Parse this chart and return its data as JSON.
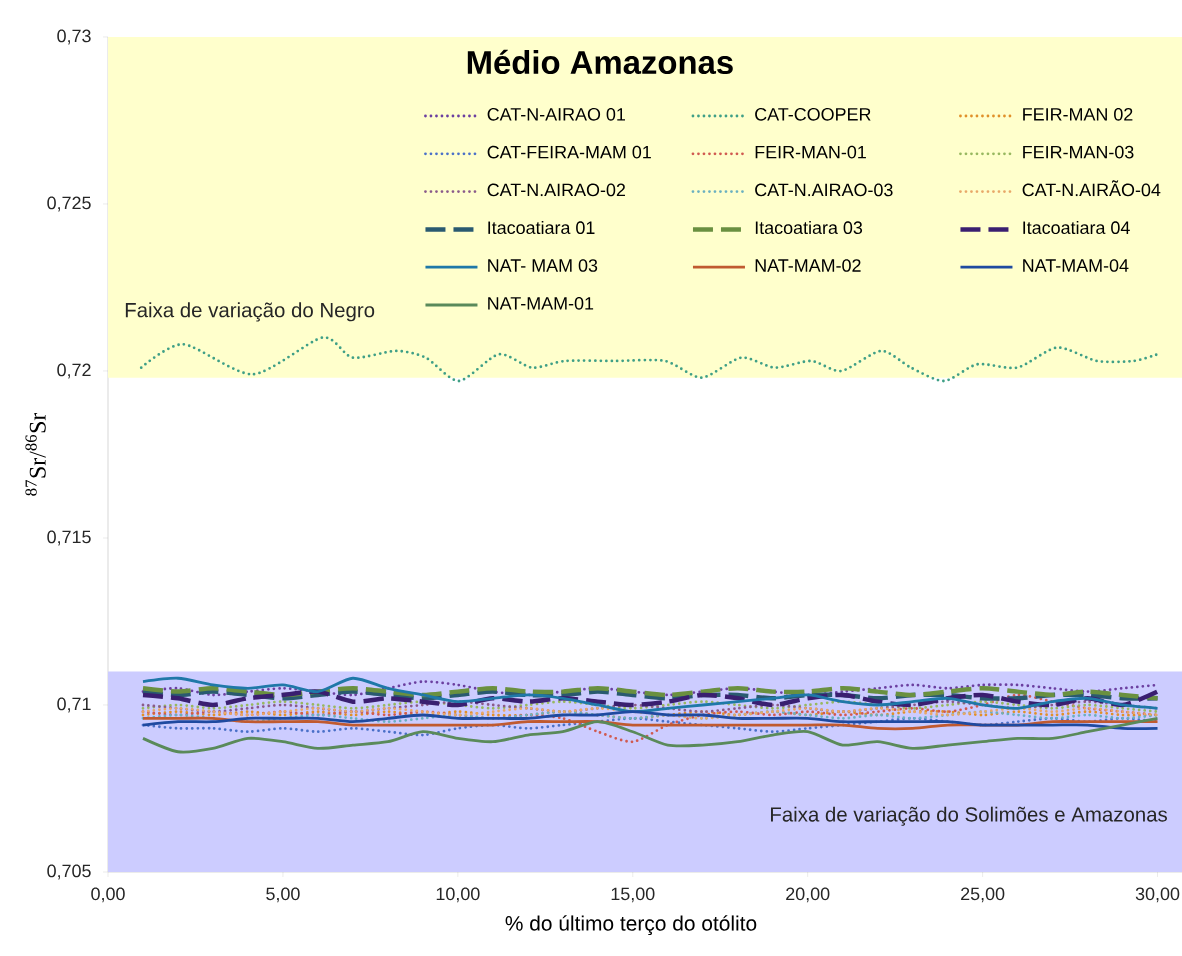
{
  "chart_data": {
    "type": "line",
    "title": "Médio Amazonas",
    "xlabel": "% do último terço do otólito",
    "ylabel": "$^{87}$Sr/$^{86}$Sr",
    "xlim": [
      0,
      30.7
    ],
    "ylim": [
      0.705,
      0.73
    ],
    "xticks": [
      {
        "value": 0,
        "label": "0,00"
      },
      {
        "value": 5,
        "label": "5,00"
      },
      {
        "value": 10,
        "label": "10,00"
      },
      {
        "value": 15,
        "label": "15,00"
      },
      {
        "value": 20,
        "label": "20,00"
      },
      {
        "value": 25,
        "label": "25,00"
      },
      {
        "value": 30,
        "label": "30,00"
      }
    ],
    "yticks": [
      {
        "value": 0.705,
        "label": "0,705"
      },
      {
        "value": 0.71,
        "label": "0,71"
      },
      {
        "value": 0.715,
        "label": "0,715"
      },
      {
        "value": 0.72,
        "label": "0,72"
      },
      {
        "value": 0.725,
        "label": "0,725"
      },
      {
        "value": 0.73,
        "label": "0,73"
      }
    ],
    "legend": "top",
    "bands": [
      {
        "axis": "y",
        "from": 0.7198,
        "to": 0.73,
        "label": "Faixa de variação do Negro",
        "color": "#ffffcc"
      },
      {
        "axis": "y",
        "from": 0.705,
        "to": 0.711,
        "label": "Faixa de variação do Solimões e Amazonas",
        "color": "#ccccff"
      }
    ],
    "x": [
      1,
      2,
      3,
      4,
      5,
      6,
      7,
      8,
      9,
      10,
      11,
      12,
      13,
      14,
      15,
      16,
      17,
      18,
      19,
      20,
      21,
      22,
      23,
      24,
      25,
      26,
      27,
      28,
      29,
      30
    ],
    "series": [
      {
        "name": "CAT-N-AIRAO 01",
        "color": "#6b3fa0",
        "line_style": "dotted",
        "values": [
          0.7104,
          0.7105,
          0.7103,
          0.7104,
          0.7105,
          0.7104,
          0.7103,
          0.7105,
          0.7107,
          0.7106,
          0.7104,
          0.7103,
          0.7104,
          0.7105,
          0.7104,
          0.7103,
          0.7104,
          0.7105,
          0.7104,
          0.7103,
          0.7104,
          0.7105,
          0.7106,
          0.7105,
          0.7106,
          0.7106,
          0.7105,
          0.7104,
          0.7105,
          0.7106
        ]
      },
      {
        "name": "CAT-COOPER",
        "color": "#3f9f86",
        "line_style": "dotted",
        "x": [
          0.95,
          2.15,
          4.14,
          6.13,
          6.99,
          8.23,
          9.08,
          10.03,
          11.17,
          12.12,
          13.07,
          14.5,
          15.92,
          16.97,
          18.1,
          19.06,
          20.1,
          20.96,
          22.1,
          22.95,
          23.9,
          24.85,
          25.99,
          27.13,
          28.27,
          29.32,
          30.0
        ],
        "values": [
          0.7201,
          0.7208,
          0.7199,
          0.721,
          0.7204,
          0.7206,
          0.7204,
          0.7197,
          0.7205,
          0.7201,
          0.7203,
          0.7203,
          0.7203,
          0.7198,
          0.7204,
          0.7201,
          0.7203,
          0.72,
          0.7206,
          0.7201,
          0.7197,
          0.7202,
          0.7201,
          0.7207,
          0.7203,
          0.7203,
          0.7205
        ]
      },
      {
        "name": "FEIR-MAN 02",
        "color": "#e0902a",
        "line_style": "dotted",
        "values": [
          0.7097,
          0.7098,
          0.7097,
          0.7098,
          0.7097,
          0.7098,
          0.7097,
          0.7098,
          0.7097,
          0.7098,
          0.7097,
          0.7097,
          0.7098,
          0.7097,
          0.7096,
          0.7097,
          0.7098,
          0.7097,
          0.7098,
          0.7097,
          0.7098,
          0.7097,
          0.7098,
          0.7098,
          0.7097,
          0.7098,
          0.7097,
          0.7098,
          0.7097,
          0.7097
        ]
      },
      {
        "name": "CAT-FEIRA-MAM 01",
        "color": "#4a70c8",
        "line_style": "dotted",
        "values": [
          0.7094,
          0.7093,
          0.7093,
          0.7092,
          0.7093,
          0.7092,
          0.7093,
          0.7092,
          0.7091,
          0.7093,
          0.7094,
          0.7093,
          0.7094,
          0.7095,
          0.7096,
          0.7095,
          0.7094,
          0.7093,
          0.7092,
          0.7093,
          0.7094,
          0.7095,
          0.7096,
          0.7095,
          0.7094,
          0.7095,
          0.7096,
          0.7095,
          0.7096,
          0.7095
        ]
      },
      {
        "name": "FEIR-MAN-01",
        "color": "#d05a50",
        "line_style": "dotted",
        "values": [
          0.7098,
          0.7097,
          0.7098,
          0.7097,
          0.7098,
          0.7097,
          0.7098,
          0.7097,
          0.7098,
          0.7097,
          0.7096,
          0.7097,
          0.7096,
          0.7092,
          0.7089,
          0.7094,
          0.7097,
          0.7098,
          0.7097,
          0.7098,
          0.7097,
          0.7098,
          0.7099,
          0.7098,
          0.71,
          0.7103,
          0.7101,
          0.7099,
          0.7098,
          0.7097
        ]
      },
      {
        "name": "FEIR-MAN-03",
        "color": "#98b860",
        "line_style": "dotted",
        "values": [
          0.7099,
          0.71,
          0.7099,
          0.71,
          0.7101,
          0.71,
          0.7099,
          0.71,
          0.7101,
          0.71,
          0.7099,
          0.71,
          0.7101,
          0.71,
          0.7099,
          0.71,
          0.7101,
          0.71,
          0.7099,
          0.71,
          0.7101,
          0.71,
          0.7099,
          0.71,
          0.7101,
          0.71,
          0.7099,
          0.71,
          0.7099,
          0.7098
        ]
      },
      {
        "name": "CAT-N.AIRAO-02",
        "color": "#8a5a8a",
        "line_style": "dotted",
        "values": [
          0.71,
          0.7099,
          0.7098,
          0.7099,
          0.71,
          0.7099,
          0.7098,
          0.7099,
          0.71,
          0.7101,
          0.71,
          0.7099,
          0.7098,
          0.7099,
          0.71,
          0.7099,
          0.7098,
          0.7099,
          0.71,
          0.7099,
          0.7098,
          0.7099,
          0.71,
          0.7101,
          0.71,
          0.7099,
          0.71,
          0.7101,
          0.71,
          0.7099
        ]
      },
      {
        "name": "CAT-N.AIRAO-03",
        "color": "#6ab0c0",
        "line_style": "dotted",
        "values": [
          0.7096,
          0.7097,
          0.7096,
          0.7095,
          0.7096,
          0.7097,
          0.7096,
          0.7095,
          0.7096,
          0.7097,
          0.7096,
          0.7097,
          0.7098,
          0.7097,
          0.7096,
          0.7097,
          0.7096,
          0.7097,
          0.7098,
          0.7097,
          0.7096,
          0.7097,
          0.7096,
          0.7097,
          0.7098,
          0.7097,
          0.7096,
          0.7097,
          0.7096,
          0.7097
        ]
      },
      {
        "name": "CAT-N.AIRÃO-04",
        "color": "#e8a868",
        "line_style": "dotted",
        "values": [
          0.7098,
          0.7099,
          0.7098,
          0.7097,
          0.7098,
          0.7099,
          0.7098,
          0.7099,
          0.7098,
          0.7097,
          0.7098,
          0.7099,
          0.7098,
          0.7099,
          0.7098,
          0.7097,
          0.7096,
          0.7097,
          0.7098,
          0.7099,
          0.7098,
          0.7099,
          0.7098,
          0.7097,
          0.7098,
          0.7099,
          0.7098,
          0.7099,
          0.7098,
          0.7097
        ]
      },
      {
        "name": "Itacoatiara 01",
        "color": "#2a5a70",
        "line_style": "dashed",
        "values": [
          0.7104,
          0.7103,
          0.7104,
          0.7103,
          0.7102,
          0.7103,
          0.7104,
          0.7103,
          0.7102,
          0.7103,
          0.7104,
          0.7103,
          0.7103,
          0.7104,
          0.7103,
          0.7102,
          0.7103,
          0.7103,
          0.7102,
          0.7103,
          0.7103,
          0.7102,
          0.7103,
          0.7103,
          0.7102,
          0.7102,
          0.7103,
          0.7103,
          0.7102,
          0.7102
        ]
      },
      {
        "name": "Itacoatiara 03",
        "color": "#6a9040",
        "line_style": "dashed",
        "values": [
          0.7105,
          0.7104,
          0.7105,
          0.7104,
          0.7103,
          0.7104,
          0.7105,
          0.7104,
          0.7103,
          0.7104,
          0.7105,
          0.7104,
          0.7104,
          0.7105,
          0.7104,
          0.7103,
          0.7104,
          0.7105,
          0.7104,
          0.7104,
          0.7105,
          0.7104,
          0.7103,
          0.7104,
          0.7105,
          0.7104,
          0.7103,
          0.7104,
          0.7103,
          0.7102
        ]
      },
      {
        "name": "Itacoatiara 04",
        "color": "#3a1f70",
        "line_style": "dashed",
        "values": [
          0.7103,
          0.7102,
          0.71,
          0.7102,
          0.7103,
          0.7104,
          0.7101,
          0.7102,
          0.7101,
          0.71,
          0.7102,
          0.7101,
          0.7102,
          0.7101,
          0.71,
          0.7101,
          0.7103,
          0.7102,
          0.71,
          0.7102,
          0.7103,
          0.7101,
          0.71,
          0.7102,
          0.7103,
          0.7101,
          0.71,
          0.7102,
          0.71,
          0.7104
        ]
      },
      {
        "name": "NAT- MAM 03",
        "color": "#1f78a8",
        "line_style": "solid",
        "values": [
          0.7107,
          0.7108,
          0.7106,
          0.7105,
          0.7106,
          0.7104,
          0.7108,
          0.7105,
          0.7103,
          0.7101,
          0.7102,
          0.7103,
          0.7102,
          0.71,
          0.7098,
          0.7099,
          0.71,
          0.7101,
          0.7102,
          0.7103,
          0.7101,
          0.71,
          0.7101,
          0.7102,
          0.71,
          0.7099,
          0.7101,
          0.7102,
          0.71,
          0.7099
        ]
      },
      {
        "name": "NAT-MAM-02",
        "color": "#c05a30",
        "line_style": "solid",
        "values": [
          0.7096,
          0.7096,
          0.7096,
          0.7095,
          0.7095,
          0.7095,
          0.7094,
          0.7094,
          0.7094,
          0.7094,
          0.7094,
          0.7095,
          0.7095,
          0.7095,
          0.7094,
          0.7094,
          0.7094,
          0.7094,
          0.7094,
          0.7094,
          0.7094,
          0.7093,
          0.7093,
          0.7094,
          0.7094,
          0.7094,
          0.7095,
          0.7095,
          0.7095,
          0.7095
        ]
      },
      {
        "name": "NAT-MAM-04",
        "color": "#1f4aa0",
        "line_style": "solid",
        "values": [
          0.7094,
          0.7095,
          0.7095,
          0.7096,
          0.7096,
          0.7096,
          0.7095,
          0.7096,
          0.7097,
          0.7096,
          0.7096,
          0.7096,
          0.7097,
          0.7097,
          0.7098,
          0.7097,
          0.7097,
          0.7096,
          0.7096,
          0.7096,
          0.7095,
          0.7095,
          0.7095,
          0.7095,
          0.7094,
          0.7094,
          0.7094,
          0.7094,
          0.7093,
          0.7093
        ]
      },
      {
        "name": "NAT-MAM-01",
        "color": "#5a8a5a",
        "line_style": "solid",
        "values": [
          0.709,
          0.7086,
          0.7087,
          0.709,
          0.7089,
          0.7087,
          0.7088,
          0.7089,
          0.7092,
          0.709,
          0.7089,
          0.7091,
          0.7092,
          0.7095,
          0.7092,
          0.7088,
          0.7088,
          0.7089,
          0.7091,
          0.7092,
          0.7088,
          0.7089,
          0.7087,
          0.7088,
          0.7089,
          0.709,
          0.709,
          0.7092,
          0.7094,
          0.7096
        ]
      }
    ]
  }
}
